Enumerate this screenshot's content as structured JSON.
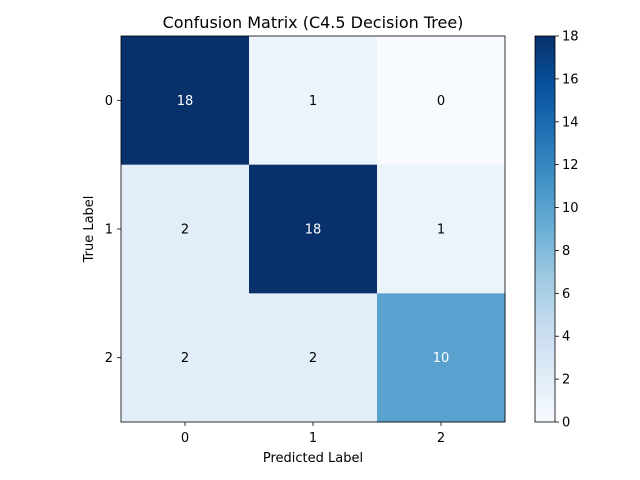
{
  "chart_data": {
    "type": "heatmap",
    "title": "Confusion Matrix (C4.5 Decision Tree)",
    "xlabel": "Predicted Label",
    "ylabel": "True Label",
    "x_categories": [
      "0",
      "1",
      "2"
    ],
    "y_categories": [
      "0",
      "1",
      "2"
    ],
    "values": [
      [
        18,
        1,
        0
      ],
      [
        2,
        18,
        1
      ],
      [
        2,
        2,
        10
      ]
    ],
    "colormap": "Blues",
    "colorbar": {
      "range": [
        0,
        18
      ],
      "ticks": [
        "0",
        "2",
        "4",
        "6",
        "8",
        "10",
        "12",
        "14",
        "16",
        "18"
      ]
    },
    "grid": false
  }
}
